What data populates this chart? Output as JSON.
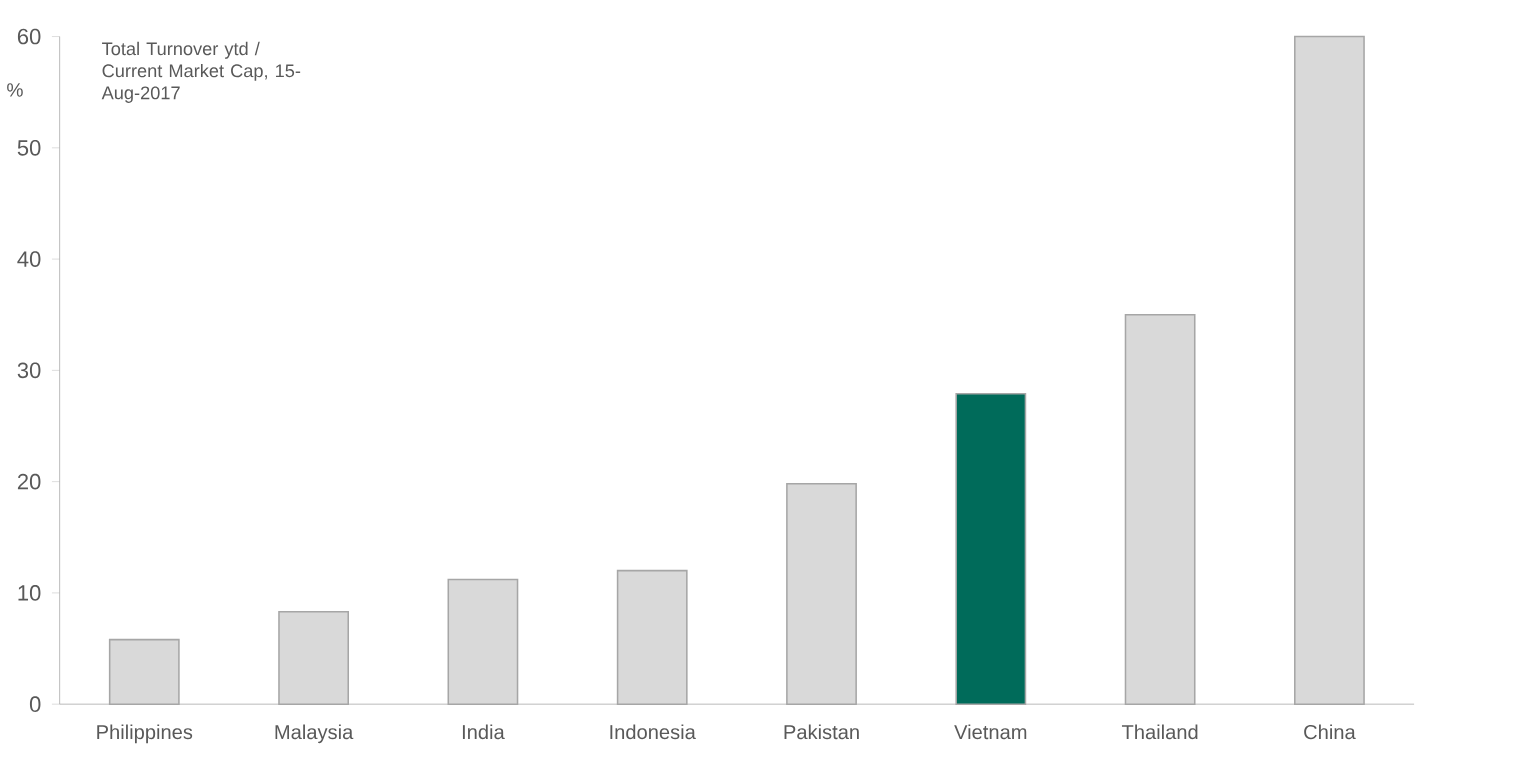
{
  "chart_data": {
    "type": "bar",
    "title": "Total Turnover ytd / Current Market Cap, 15-Aug-2017",
    "ylabel": "%",
    "categories": [
      "Philippines",
      "Malaysia",
      "India",
      "Indonesia",
      "Pakistan",
      "Vietnam",
      "Thailand",
      "China"
    ],
    "values": [
      5.8,
      8.3,
      11.2,
      12.0,
      19.8,
      27.9,
      35.0,
      60
    ],
    "colors": [
      "#d9d9d9",
      "#d9d9d9",
      "#d9d9d9",
      "#d9d9d9",
      "#d9d9d9",
      "#006b5a",
      "#d9d9d9",
      "#d9d9d9"
    ],
    "ylim": [
      0,
      60
    ],
    "yticks": [
      0,
      10,
      20,
      30,
      40,
      50,
      60
    ]
  }
}
